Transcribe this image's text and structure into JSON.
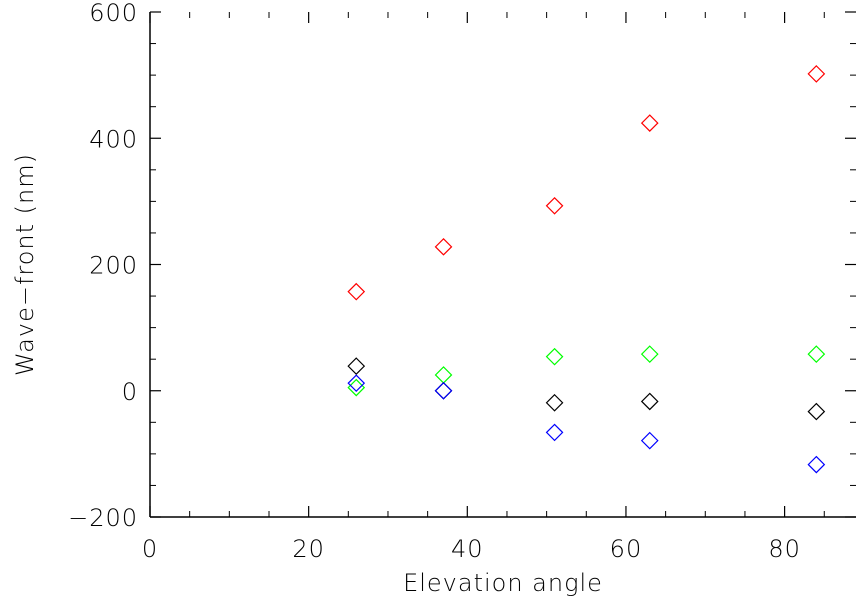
{
  "chart_data": {
    "type": "scatter",
    "title": "",
    "xlabel": "Elevation angle",
    "ylabel": "Wave−front (nm)",
    "xlim": [
      0,
      89
    ],
    "ylim": [
      -200,
      600
    ],
    "xticks": [
      0,
      20,
      40,
      60,
      80
    ],
    "xtick_labels": [
      "0",
      "20",
      "40",
      "60",
      "80"
    ],
    "yticks": [
      -200,
      0,
      200,
      400,
      600
    ],
    "ytick_labels": [
      "−200",
      "0",
      "200",
      "400",
      "600"
    ],
    "grid": false,
    "marker": "diamond-open",
    "series": [
      {
        "color": "#ff0000",
        "x": [
          26,
          37,
          51,
          63,
          84
        ],
        "y": [
          157,
          228,
          293,
          424,
          502
        ]
      },
      {
        "color": "#00ff00",
        "x": [
          26,
          37,
          51,
          63,
          84
        ],
        "y": [
          5,
          25,
          54,
          58,
          58
        ]
      },
      {
        "color": "#000000",
        "x": [
          26,
          37,
          51,
          63,
          84
        ],
        "y": [
          39,
          0,
          -19,
          -17,
          -33
        ]
      },
      {
        "color": "#0000ff",
        "x": [
          26,
          37,
          51,
          63,
          84
        ],
        "y": [
          12,
          0,
          -66,
          -79,
          -117
        ]
      }
    ]
  }
}
